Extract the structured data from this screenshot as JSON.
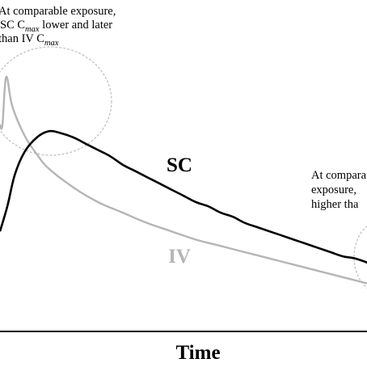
{
  "chart_data": {
    "type": "line",
    "xlabel": "Time",
    "ylabel": "",
    "grid": false,
    "series": [
      {
        "name": "SC",
        "color": "#000000",
        "points": [
          [
            0,
            0.48
          ],
          [
            0.3,
            0.6
          ],
          [
            0.6,
            0.75
          ],
          [
            1,
            0.86
          ],
          [
            1.5,
            0.93
          ],
          [
            2,
            0.96
          ],
          [
            2.5,
            0.95
          ],
          [
            3,
            0.93
          ],
          [
            3.5,
            0.9
          ],
          [
            4,
            0.87
          ],
          [
            4.5,
            0.84
          ],
          [
            5,
            0.8
          ],
          [
            5.5,
            0.77
          ],
          [
            6,
            0.74
          ],
          [
            6.5,
            0.71
          ],
          [
            7,
            0.68
          ],
          [
            7.5,
            0.65
          ],
          [
            8,
            0.62
          ],
          [
            8.5,
            0.6
          ],
          [
            9,
            0.57
          ],
          [
            9.5,
            0.55
          ],
          [
            10,
            0.52
          ],
          [
            10.5,
            0.5
          ],
          [
            11,
            0.48
          ],
          [
            11.5,
            0.46
          ],
          [
            12,
            0.44
          ],
          [
            12.5,
            0.42
          ],
          [
            13,
            0.4
          ],
          [
            13.5,
            0.38
          ],
          [
            14,
            0.36
          ],
          [
            14.5,
            0.35
          ],
          [
            15,
            0.33
          ]
        ]
      },
      {
        "name": "IV",
        "color": "#b5b5b5",
        "points": [
          [
            0,
            0.99
          ],
          [
            0.1,
            0.99
          ],
          [
            0.25,
            1.22
          ],
          [
            0.5,
            1.08
          ],
          [
            1,
            0.94
          ],
          [
            1.5,
            0.85
          ],
          [
            2,
            0.78
          ],
          [
            3,
            0.69
          ],
          [
            4,
            0.62
          ],
          [
            5,
            0.57
          ],
          [
            6,
            0.52
          ],
          [
            7,
            0.48
          ],
          [
            8,
            0.44
          ],
          [
            9,
            0.41
          ],
          [
            10,
            0.38
          ],
          [
            11,
            0.35
          ],
          [
            12,
            0.32
          ],
          [
            13,
            0.29
          ],
          [
            14,
            0.26
          ],
          [
            15,
            0.23
          ]
        ]
      }
    ],
    "annotations": [
      {
        "id": "cmax",
        "lines": [
          [
            {
              "text": "At comparable exposure,"
            }
          ],
          [
            {
              "text": "SC C"
            },
            {
              "text": "max",
              "sub": true
            },
            {
              "text": " lower and later"
            }
          ],
          [
            {
              "text": "than IV C"
            },
            {
              "text": "max",
              "sub": true
            }
          ]
        ]
      },
      {
        "id": "tail",
        "lines": [
          [
            {
              "text": "At compara"
            }
          ],
          [
            {
              "text": "exposure,"
            }
          ],
          [
            {
              "text": "higher tha"
            }
          ]
        ]
      }
    ]
  }
}
